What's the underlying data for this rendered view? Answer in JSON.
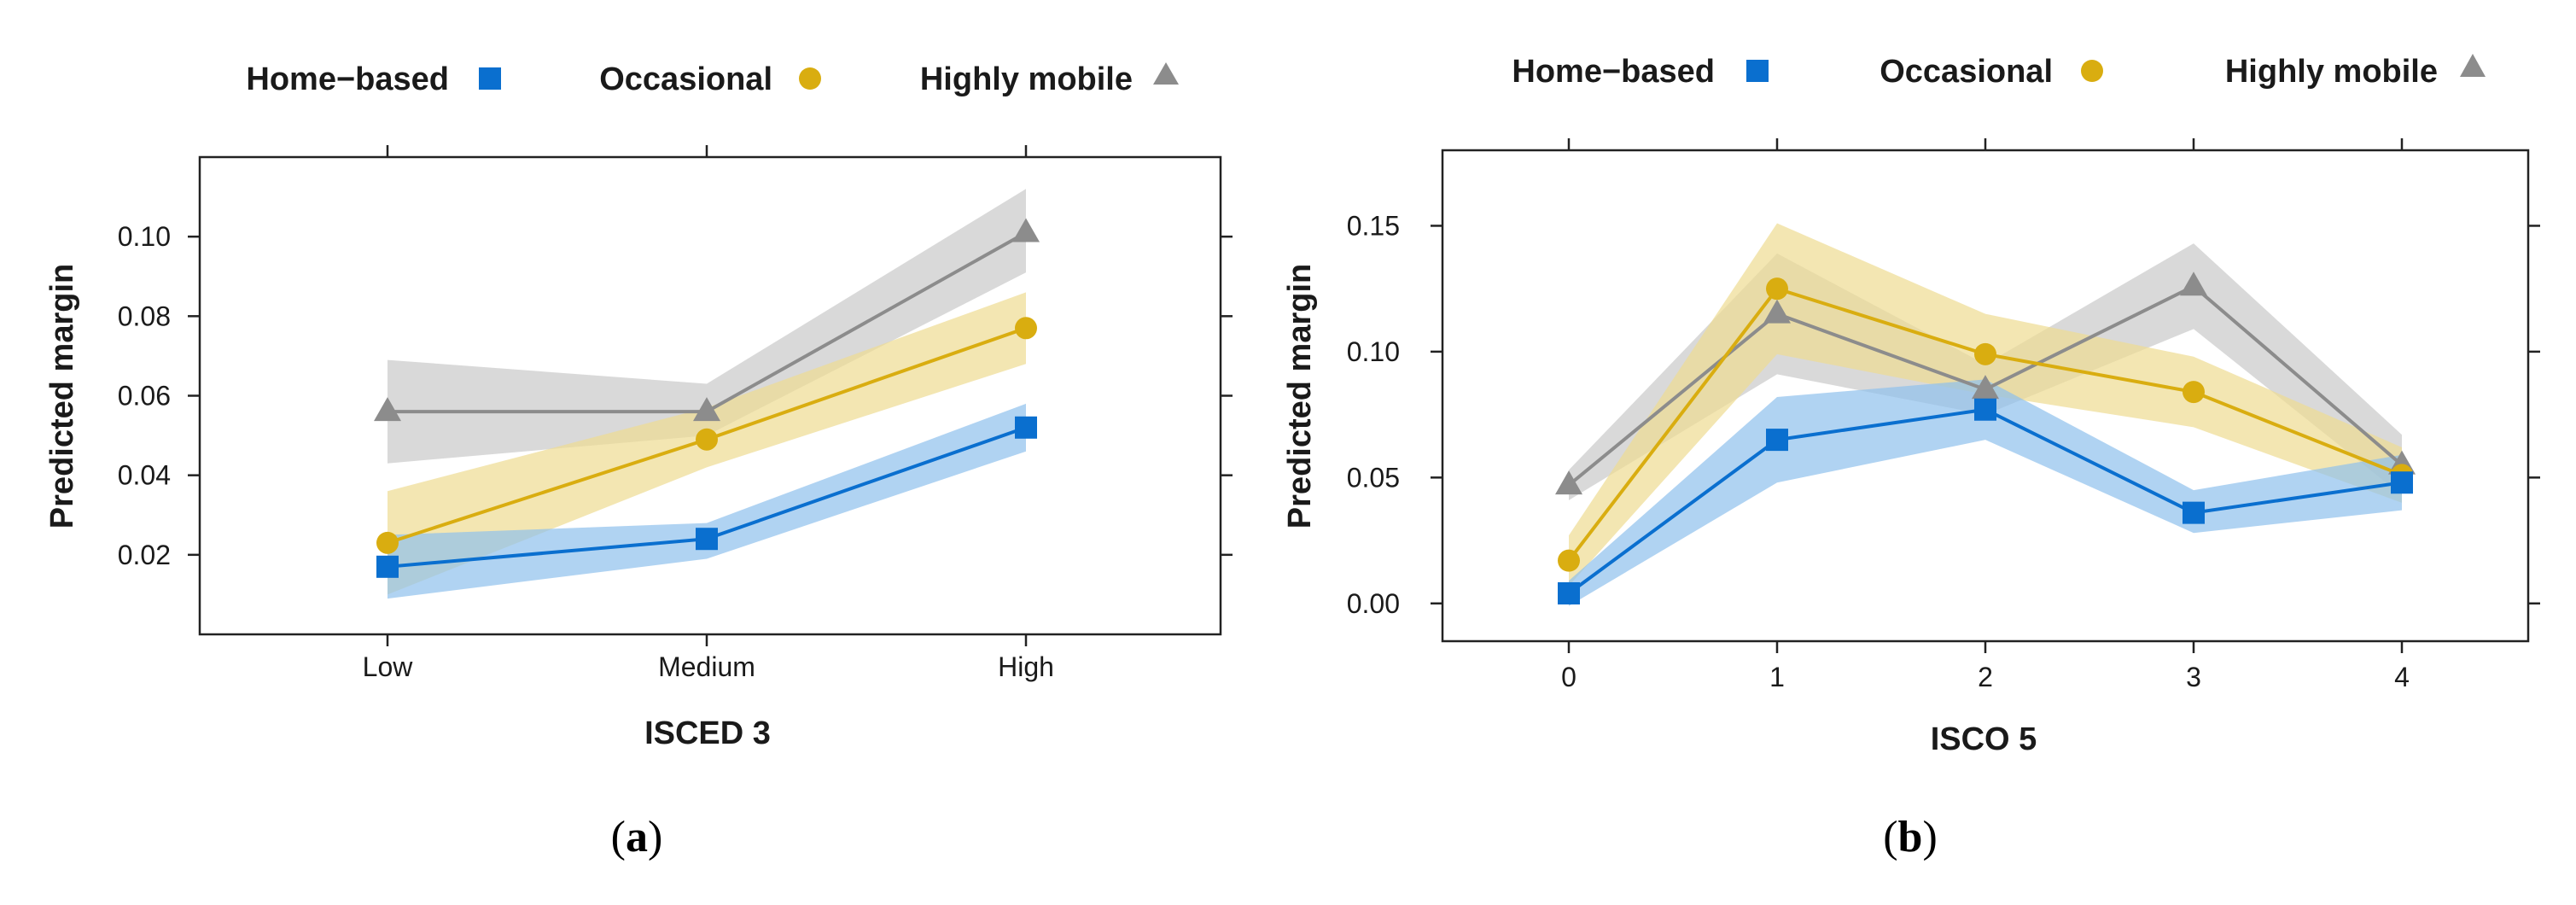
{
  "chart_data": [
    {
      "type": "line",
      "panel_label": "a",
      "legend": [
        {
          "name": "Home−based",
          "marker": "square"
        },
        {
          "name": "Occasional",
          "marker": "circle"
        },
        {
          "name": "Highly mobile",
          "marker": "triangle"
        }
      ],
      "xlabel": "ISCED 3",
      "ylabel": "Predicted margin",
      "categories": [
        "Low",
        "Medium",
        "High"
      ],
      "ylim": [
        0.0,
        0.12
      ],
      "yticks": [
        "0.02",
        "0.04",
        "0.06",
        "0.08",
        "0.10"
      ],
      "ytick_values": [
        0.02,
        0.04,
        0.06,
        0.08,
        0.1
      ],
      "series": [
        {
          "name": "Home−based",
          "values": [
            0.017,
            0.024,
            0.052
          ],
          "lower": [
            0.009,
            0.019,
            0.046
          ],
          "upper": [
            0.025,
            0.028,
            0.058
          ]
        },
        {
          "name": "Occasional",
          "values": [
            0.023,
            0.049,
            0.077
          ],
          "lower": [
            0.01,
            0.042,
            0.068
          ],
          "upper": [
            0.036,
            0.057,
            0.086
          ]
        },
        {
          "name": "Highly mobile",
          "values": [
            0.056,
            0.056,
            0.101
          ],
          "lower": [
            0.043,
            0.05,
            0.091
          ],
          "upper": [
            0.069,
            0.063,
            0.112
          ]
        }
      ]
    },
    {
      "type": "line",
      "panel_label": "b",
      "legend": [
        {
          "name": "Home−based",
          "marker": "square"
        },
        {
          "name": "Occasional",
          "marker": "circle"
        },
        {
          "name": "Highly mobile",
          "marker": "triangle"
        }
      ],
      "xlabel": "ISCO 5",
      "ylabel": "Predicted margin",
      "categories": [
        "0",
        "1",
        "2",
        "3",
        "4"
      ],
      "ylim": [
        -0.015,
        0.18
      ],
      "yticks": [
        "0.00",
        "0.05",
        "0.10",
        "0.15"
      ],
      "ytick_values": [
        0.0,
        0.05,
        0.1,
        0.15
      ],
      "series": [
        {
          "name": "Home−based",
          "values": [
            0.004,
            0.065,
            0.077,
            0.036,
            0.048
          ],
          "lower": [
            -0.001,
            0.048,
            0.065,
            0.028,
            0.037
          ],
          "upper": [
            0.009,
            0.082,
            0.089,
            0.045,
            0.059
          ]
        },
        {
          "name": "Occasional",
          "values": [
            0.017,
            0.125,
            0.099,
            0.084,
            0.051
          ],
          "lower": [
            0.007,
            0.099,
            0.083,
            0.07,
            0.04
          ],
          "upper": [
            0.027,
            0.151,
            0.115,
            0.098,
            0.062
          ]
        },
        {
          "name": "Highly mobile",
          "values": [
            0.047,
            0.115,
            0.085,
            0.126,
            0.055
          ],
          "lower": [
            0.041,
            0.091,
            0.075,
            0.109,
            0.043
          ],
          "upper": [
            0.053,
            0.139,
            0.095,
            0.143,
            0.067
          ]
        }
      ]
    }
  ],
  "colors": {
    "home_based": "#0a6fcf",
    "home_based_band": "#8fc1ec",
    "occasional": "#d9ad10",
    "occasional_band": "#eedb91",
    "highly_mobile": "#8c8c8c",
    "highly_mobile_band": "#c9c9c9"
  },
  "captions": {
    "a": {
      "open": "(",
      "letter": "a",
      "close": ")"
    },
    "b": {
      "open": "(",
      "letter": "b",
      "close": ")"
    }
  }
}
